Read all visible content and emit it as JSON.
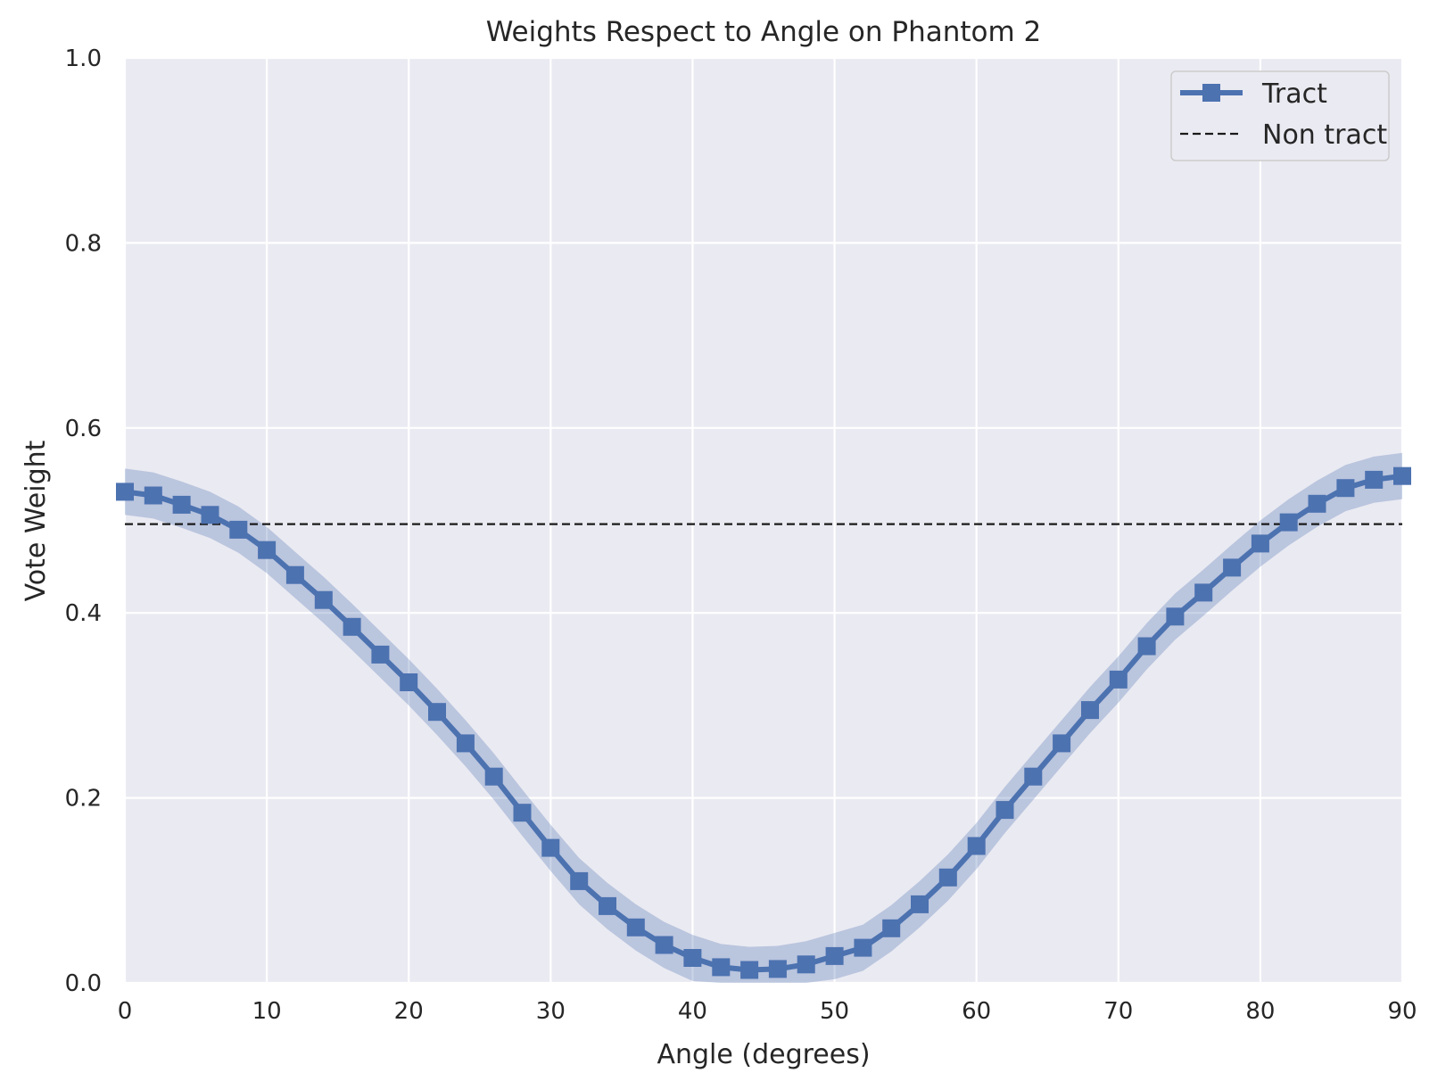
{
  "chart_data": {
    "type": "line",
    "title": "Weights Respect to Angle on Phantom 2",
    "xlabel": "Angle (degrees)",
    "ylabel": "Vote Weight",
    "xlim": [
      0,
      90
    ],
    "ylim": [
      0,
      1.0
    ],
    "xticks": [
      0,
      10,
      20,
      30,
      40,
      50,
      60,
      70,
      80,
      90
    ],
    "xtick_labels": [
      "0",
      "10",
      "20",
      "30",
      "40",
      "50",
      "60",
      "70",
      "80",
      "90"
    ],
    "yticks": [
      0,
      0.2,
      0.4,
      0.6,
      0.8,
      1.0
    ],
    "ytick_labels": [
      "0.0",
      "0.2",
      "0.4",
      "0.6",
      "0.8",
      "1.0"
    ],
    "grid": true,
    "legend_position": "top-right",
    "colors": {
      "background": "#eaeaf2",
      "grid": "#ffffff",
      "tract": "#4c72b0",
      "band": "#4c72b0",
      "non_tract": "#1a1a1a"
    },
    "series": [
      {
        "name": "Tract",
        "style": "solid-line-square-markers",
        "x": [
          0,
          2,
          4,
          6,
          8,
          10,
          12,
          14,
          16,
          18,
          20,
          22,
          24,
          26,
          28,
          30,
          32,
          34,
          36,
          38,
          40,
          42,
          44,
          46,
          48,
          50,
          52,
          54,
          56,
          58,
          60,
          62,
          64,
          66,
          68,
          70,
          72,
          74,
          76,
          78,
          80,
          82,
          84,
          86,
          88,
          90
        ],
        "y": [
          0.531,
          0.527,
          0.517,
          0.506,
          0.49,
          0.468,
          0.441,
          0.414,
          0.385,
          0.355,
          0.325,
          0.293,
          0.259,
          0.223,
          0.184,
          0.146,
          0.11,
          0.083,
          0.06,
          0.041,
          0.027,
          0.017,
          0.014,
          0.015,
          0.02,
          0.029,
          0.038,
          0.059,
          0.085,
          0.114,
          0.148,
          0.187,
          0.223,
          0.259,
          0.295,
          0.328,
          0.364,
          0.396,
          0.422,
          0.449,
          0.475,
          0.498,
          0.518,
          0.535,
          0.544,
          0.548
        ],
        "band_halfwidth": 0.025
      },
      {
        "name": "Non tract",
        "style": "dashed-line",
        "y_constant": 0.496
      }
    ]
  }
}
